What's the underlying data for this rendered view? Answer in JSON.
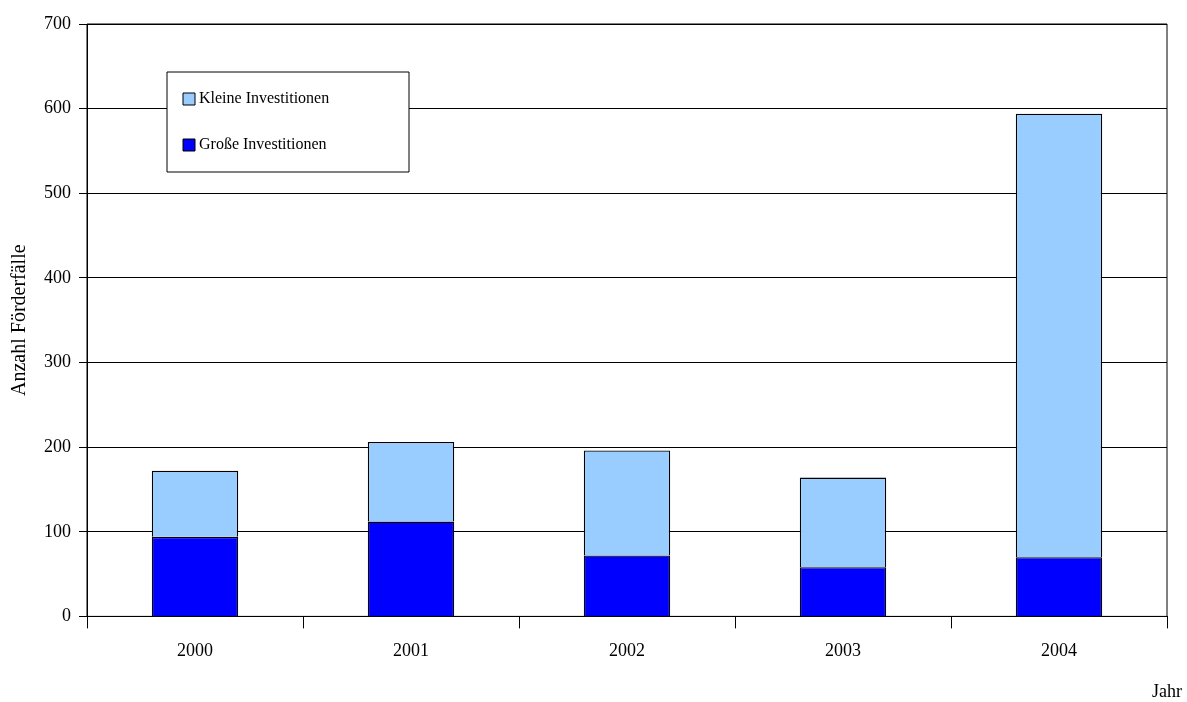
{
  "chart_data": {
    "type": "bar",
    "stacked": true,
    "xlabel": "Jahr",
    "ylabel": "Anzahl Förderfälle",
    "categories": [
      "2000",
      "2001",
      "2002",
      "2003",
      "2004"
    ],
    "series": [
      {
        "name": "Große Investitionen",
        "color": "#0000ff",
        "values": [
          94,
          112,
          72,
          58,
          70
        ]
      },
      {
        "name": "Kleine Investitionen",
        "color": "#99ccff",
        "values": [
          78,
          94,
          124,
          106,
          524
        ]
      }
    ],
    "ylim": [
      0,
      700
    ],
    "yticks": [
      0,
      100,
      200,
      300,
      400,
      500,
      600,
      700
    ],
    "grid": "y",
    "legend": "top left"
  }
}
